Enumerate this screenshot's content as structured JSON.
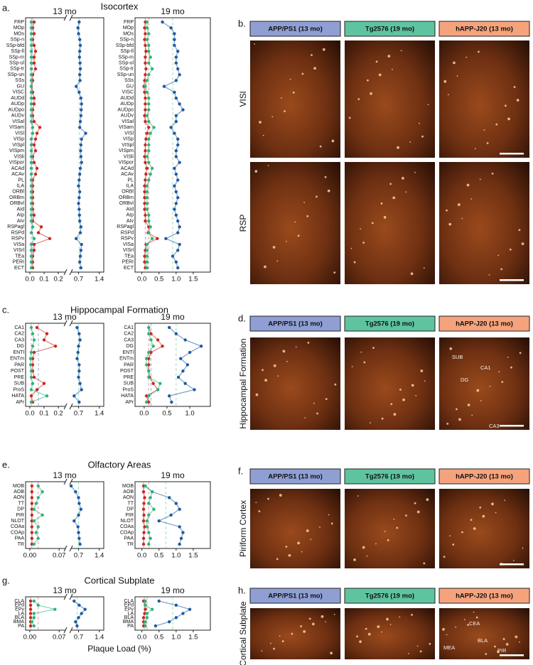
{
  "panels": [
    {
      "letter": "a.",
      "title": "Isocortex"
    },
    {
      "letter": "c.",
      "title": "Hippocampal Formation"
    },
    {
      "letter": "e.",
      "title": "Olfactory Areas"
    },
    {
      "letter": "g.",
      "title": "Cortical Subplate"
    }
  ],
  "xlabel": "Plaque Load (%)",
  "header_colors": [
    "#8f9fd4",
    "#5ec4a0",
    "#f5a37c"
  ],
  "image_panels": [
    {
      "letter": "b.",
      "headers": [
        "APP/PS1 (13 mo)",
        "Tg2576 (19 mo)",
        "hAPP-J20 (13 mo)"
      ],
      "row_labels": [
        "VISl",
        "RSP"
      ]
    },
    {
      "letter": "d.",
      "headers": [
        "APP/PS1 (13 mo)",
        "Tg2576 (19 mo)",
        "hAPP-J20 (13 mo)"
      ],
      "row_labels": [
        "Hippocampal Formation"
      ],
      "annotations": [
        "SUB",
        "CA1",
        "DG",
        "CA3"
      ]
    },
    {
      "letter": "f.",
      "headers": [
        "APP/PS1 (13 mo)",
        "Tg2576 (19 mo)",
        "hAPP-J20 (13 mo)"
      ],
      "row_labels": [
        "Piriform Cortex"
      ]
    },
    {
      "letter": "h.",
      "headers": [
        "APP/PS1 (13 mo)",
        "Tg2576 (19 mo)",
        "hAPP-J20 (13 mo)"
      ],
      "row_labels": [
        "Cortical Subplate"
      ],
      "annotations": [
        "CEA",
        "BLA",
        "MEA",
        "PIR"
      ]
    }
  ],
  "chart_data": [
    {
      "type": "dot",
      "subtitle": "13 mo",
      "categories": [
        "FRP",
        "MOp",
        "MOs",
        "SSp-n",
        "SSp-bfd",
        "SSp-ll",
        "SSp-m",
        "SSp-ul",
        "SSp-tr",
        "SSp-un",
        "SSs",
        "GU",
        "VISC",
        "AUDd",
        "AUDp",
        "AUDpo",
        "AUDv",
        "VISal",
        "VISam",
        "VISl",
        "VISp",
        "VISpl",
        "VISpm",
        "VISli",
        "VISpor",
        "ACAd",
        "ACAv",
        "PL",
        "ILA",
        "ORBl",
        "ORBm",
        "ORBvl",
        "AId",
        "AIp",
        "AIv",
        "RSPagl",
        "RSPd",
        "RSPv",
        "VISa",
        "VISrl",
        "TEa",
        "PERI",
        "ECT"
      ],
      "xlim": [
        -0.03,
        1.55
      ],
      "xbreak": [
        0.25,
        0.45
      ],
      "xticks": [
        {
          "value": 0,
          "label": "0.0"
        },
        0.1,
        0.2,
        0.7,
        1.4
      ],
      "ref_lines": [
        0.02,
        0.01,
        0.72
      ],
      "series": [
        {
          "color": "#1f5aa0",
          "values": [
            0.72,
            0.68,
            0.7,
            0.74,
            0.76,
            0.74,
            0.73,
            0.75,
            0.76,
            0.74,
            0.75,
            0.62,
            0.72,
            0.78,
            0.8,
            0.79,
            0.78,
            0.76,
            0.74,
            0.94,
            0.8,
            0.78,
            0.77,
            0.78,
            0.8,
            0.76,
            0.74,
            0.72,
            0.7,
            0.74,
            0.72,
            0.7,
            0.72,
            0.73,
            0.74,
            0.78,
            0.76,
            0.62,
            0.8,
            0.78,
            0.76,
            0.74,
            0.78
          ]
        },
        {
          "color": "#c8281e",
          "values": [
            0.03,
            0.02,
            0.03,
            0.02,
            0.03,
            0.04,
            0.03,
            0.03,
            0.04,
            0.02,
            0.02,
            0.01,
            0.02,
            0.03,
            0.03,
            0.02,
            0.02,
            0.03,
            0.07,
            0.05,
            0.04,
            0.03,
            0.04,
            0.02,
            0.03,
            0.05,
            0.04,
            0.02,
            0.02,
            0.02,
            0.02,
            0.02,
            0.02,
            0.03,
            0.02,
            0.08,
            0.06,
            0.14,
            0.03,
            0.03,
            0.02,
            0.02,
            0.02
          ]
        },
        {
          "color": "#2db37a",
          "values": [
            0.01,
            0.01,
            0.01,
            0.01,
            0.01,
            0.01,
            0.01,
            0.01,
            0.01,
            0.01,
            0.01,
            0.01,
            0.01,
            0.01,
            0.01,
            0.01,
            0.01,
            0.01,
            0.02,
            0.02,
            0.01,
            0.01,
            0.01,
            0.01,
            0.01,
            0.01,
            0.01,
            0.01,
            0.01,
            0.01,
            0.01,
            0.01,
            0.01,
            0.01,
            0.01,
            0.02,
            0.01,
            0.03,
            0.01,
            0.01,
            0.01,
            0.01,
            0.01
          ]
        }
      ]
    },
    {
      "type": "dot",
      "subtitle": "19 mo",
      "categories": [
        "FRP",
        "MOp",
        "MOs",
        "SSp-n",
        "SSp-bfd",
        "SSp-ll",
        "SSp-m",
        "SSp-ul",
        "SSp-tr",
        "SSp-un",
        "SSs",
        "GU",
        "VISC",
        "AUDd",
        "AUDp",
        "AUDpo",
        "AUDv",
        "VISal",
        "VISam",
        "VISl",
        "VISp",
        "VISpl",
        "VISpm",
        "VISli",
        "VISpor",
        "ACAd",
        "ACAv",
        "PL",
        "ILA",
        "ORBl",
        "ORBm",
        "ORBvl",
        "AId",
        "AIp",
        "AIv",
        "RSPagl",
        "RSPd",
        "RSPv",
        "VISa",
        "VISrl",
        "TEa",
        "PERI",
        "ECT"
      ],
      "xlim": [
        -0.2,
        2.0
      ],
      "xticks": [
        {
          "value": 0,
          "label": "0.0"
        },
        0.5,
        {
          "value": 1,
          "label": "1.0"
        },
        1.5
      ],
      "ref_lines": [
        0.1,
        0.2,
        0.9
      ],
      "series": [
        {
          "color": "#1f5aa0",
          "values": [
            0.6,
            0.85,
            0.95,
            0.95,
            0.95,
            1.05,
            1.0,
            1.0,
            1.05,
            1.1,
            1.0,
            0.65,
            0.95,
            1.0,
            1.1,
            1.2,
            1.0,
            1.0,
            0.85,
            0.95,
            1.05,
            1.05,
            1.0,
            1.0,
            1.1,
            0.95,
            1.0,
            1.05,
            0.95,
            1.0,
            1.05,
            1.0,
            0.95,
            1.0,
            1.05,
            1.1,
            1.05,
            0.7,
            1.1,
            1.05,
            0.9,
            1.0,
            1.05
          ]
        },
        {
          "color": "#c8281e",
          "values": [
            0.1,
            0.08,
            0.1,
            0.08,
            0.1,
            0.12,
            0.1,
            0.1,
            0.12,
            0.1,
            0.08,
            0.06,
            0.08,
            0.1,
            0.1,
            0.1,
            0.08,
            0.1,
            0.2,
            0.15,
            0.12,
            0.1,
            0.1,
            0.08,
            0.1,
            0.15,
            0.12,
            0.1,
            0.08,
            0.08,
            0.08,
            0.08,
            0.08,
            0.1,
            0.1,
            0.2,
            0.18,
            0.45,
            0.12,
            0.1,
            0.08,
            0.08,
            0.1
          ]
        },
        {
          "color": "#2db37a",
          "values": [
            0.15,
            0.15,
            0.2,
            0.15,
            0.2,
            0.2,
            0.25,
            0.2,
            0.3,
            0.2,
            0.15,
            0.1,
            0.15,
            0.2,
            0.2,
            0.2,
            0.15,
            0.2,
            0.35,
            0.25,
            0.2,
            0.2,
            0.2,
            0.15,
            0.2,
            0.3,
            0.25,
            0.2,
            0.15,
            0.15,
            0.15,
            0.15,
            0.15,
            0.2,
            0.2,
            0.25,
            0.2,
            0.3,
            0.15,
            0.15,
            0.15,
            0.15,
            0.15
          ]
        }
      ]
    },
    {
      "type": "dot",
      "subtitle": "13 mo",
      "categories": [
        "CA1",
        "CA2",
        "CA3",
        "DG",
        "ENTl",
        "ENTm",
        "PAR",
        "POST",
        "PRE",
        "SUB",
        "ProS",
        "HATA",
        "APr"
      ],
      "xlim": [
        -0.03,
        1.55
      ],
      "xbreak": [
        0.25,
        0.45
      ],
      "xticks": [
        {
          "value": 0,
          "label": "0.0"
        },
        0.1,
        0.2,
        0.7,
        1.4
      ],
      "ref_lines": [
        0.06,
        0.01,
        0.7
      ],
      "series": [
        {
          "color": "#1f5aa0",
          "values": [
            0.65,
            0.72,
            0.75,
            0.7,
            0.68,
            0.65,
            0.72,
            0.72,
            0.7,
            0.75,
            0.8,
            0.55,
            0.72
          ]
        },
        {
          "color": "#c8281e",
          "values": [
            0.05,
            0.12,
            0.1,
            0.18,
            0.03,
            0.02,
            0.02,
            0.02,
            0.03,
            0.1,
            0.05,
            0.01,
            0.02
          ]
        },
        {
          "color": "#2db37a",
          "values": [
            0.01,
            0.02,
            0.03,
            0.02,
            0.01,
            0.005,
            0.005,
            0.01,
            0.01,
            0.02,
            0.01,
            0.12,
            0.01
          ]
        }
      ]
    },
    {
      "type": "dot",
      "subtitle": "19 mo",
      "categories": [
        "CA1",
        "CA2",
        "CA3",
        "DG",
        "ENTl",
        "ENTm",
        "PAR",
        "POST",
        "PRE",
        "SUB",
        "ProS",
        "HATA",
        "APr"
      ],
      "xlim": [
        -0.2,
        1.45
      ],
      "xticks": [
        {
          "value": 0,
          "label": "0.0"
        },
        0.5,
        {
          "value": 1,
          "label": "1.0"
        }
      ],
      "ref_lines": [
        0.15,
        0.1,
        0.7
      ],
      "series": [
        {
          "color": "#1f5aa0",
          "values": [
            0.55,
            0.7,
            0.9,
            1.25,
            1.0,
            0.8,
            0.95,
            0.85,
            0.75,
            0.9,
            1.1,
            0.55,
            0.6
          ]
        },
        {
          "color": "#c8281e",
          "values": [
            0.1,
            0.15,
            0.3,
            0.4,
            0.15,
            0.1,
            0.1,
            0.1,
            0.12,
            0.2,
            0.3,
            0.05,
            0.1
          ]
        },
        {
          "color": "#2db37a",
          "values": [
            0.1,
            0.1,
            0.15,
            0.2,
            0.1,
            0.05,
            0.05,
            0.1,
            0.1,
            0.35,
            0.3,
            0.1,
            0.05
          ]
        }
      ]
    },
    {
      "type": "dot",
      "subtitle": "13 mo",
      "categories": [
        "MOB",
        "AOB",
        "AON",
        "TT",
        "DP",
        "PIR",
        "NLOT",
        "COAa",
        "COAp",
        "PAA",
        "TR"
      ],
      "xlim": [
        -0.01,
        1.55
      ],
      "xbreak": [
        0.085,
        0.45
      ],
      "xticks": [
        {
          "value": 0,
          "label": "0.00"
        },
        0.07,
        0.7,
        1.4
      ],
      "ref_lines": [
        0.005,
        0.02,
        0.7
      ],
      "series": [
        {
          "color": "#1f5aa0",
          "values": [
            0.45,
            0.6,
            0.7,
            0.72,
            0.78,
            0.7,
            0.55,
            0.68,
            0.7,
            0.72,
            0.75
          ]
        },
        {
          "color": "#c8281e",
          "values": [
            0.005,
            0.005,
            0.005,
            0.005,
            0.005,
            0.005,
            0.005,
            0.005,
            0.005,
            0.005,
            0.005
          ]
        },
        {
          "color": "#2db37a",
          "values": [
            0.02,
            0.03,
            0.02,
            0.015,
            0.01,
            0.03,
            0.01,
            0.02,
            0.015,
            0.02,
            0.01
          ]
        }
      ]
    },
    {
      "type": "dot",
      "subtitle": "19 mo",
      "categories": [
        "MOB",
        "AOB",
        "AON",
        "TT",
        "DP",
        "PIR",
        "NLOT",
        "COAa",
        "COAp",
        "PAA",
        "TR"
      ],
      "xlim": [
        -0.2,
        2.0
      ],
      "xticks": [
        {
          "value": 0,
          "label": "0.0"
        },
        0.5,
        {
          "value": 1,
          "label": "1.0"
        },
        1.5
      ],
      "ref_lines": [
        0.05,
        0.2,
        0.7
      ],
      "series": [
        {
          "color": "#1f5aa0",
          "values": [
            0.1,
            0.3,
            0.8,
            1.0,
            1.1,
            0.85,
            0.5,
            1.1,
            1.2,
            1.15,
            1.1
          ]
        },
        {
          "color": "#c8281e",
          "values": [
            0.05,
            0.05,
            0.08,
            0.06,
            0.05,
            0.06,
            0.05,
            0.08,
            0.06,
            0.05,
            0.05
          ]
        },
        {
          "color": "#2db37a",
          "values": [
            0.1,
            0.3,
            0.25,
            0.2,
            0.35,
            0.2,
            0.15,
            0.15,
            0.2,
            0.25,
            0.2
          ]
        }
      ]
    },
    {
      "type": "dot",
      "subtitle": "13 mo",
      "categories": [
        "CLA",
        "EPd",
        "EPv",
        "LA",
        "BLA",
        "BMA",
        "PA"
      ],
      "xlim": [
        -0.01,
        1.55
      ],
      "xbreak": [
        0.085,
        0.45
      ],
      "xticks": [
        {
          "value": 0,
          "label": "0.00"
        },
        0.07,
        0.7,
        1.4
      ],
      "ref_lines": [
        0.002,
        0.02,
        0.65
      ],
      "series": [
        {
          "color": "#1f5aa0",
          "values": [
            0.55,
            0.72,
            0.92,
            0.8,
            0.7,
            0.6,
            0.65
          ]
        },
        {
          "color": "#c8281e",
          "values": [
            0.002,
            0.002,
            0.002,
            0.002,
            0.002,
            0.002,
            0.002
          ]
        },
        {
          "color": "#2db37a",
          "values": [
            0.01,
            0.02,
            0.06,
            0.01,
            0.01,
            0.005,
            0.01
          ]
        }
      ]
    },
    {
      "type": "dot",
      "subtitle": "19 mo",
      "categories": [
        "CLA",
        "EPd",
        "EPv",
        "LA",
        "BLA",
        "BMA",
        "PA"
      ],
      "xlim": [
        -0.2,
        2.0
      ],
      "xticks": [
        {
          "value": 0,
          "label": "0.0"
        },
        0.5,
        {
          "value": 1,
          "label": "1.0"
        },
        1.5
      ],
      "ref_lines": [
        0.07,
        0.15,
        0.9
      ],
      "series": [
        {
          "color": "#1f5aa0",
          "values": [
            0.5,
            1.0,
            1.4,
            1.2,
            1.0,
            0.8,
            0.4
          ]
        },
        {
          "color": "#c8281e",
          "values": [
            0.05,
            0.1,
            0.1,
            0.08,
            0.05,
            0.05,
            0.05
          ]
        },
        {
          "color": "#2db37a",
          "values": [
            0.1,
            0.1,
            0.3,
            0.15,
            0.15,
            0.1,
            0.1
          ]
        }
      ]
    }
  ]
}
